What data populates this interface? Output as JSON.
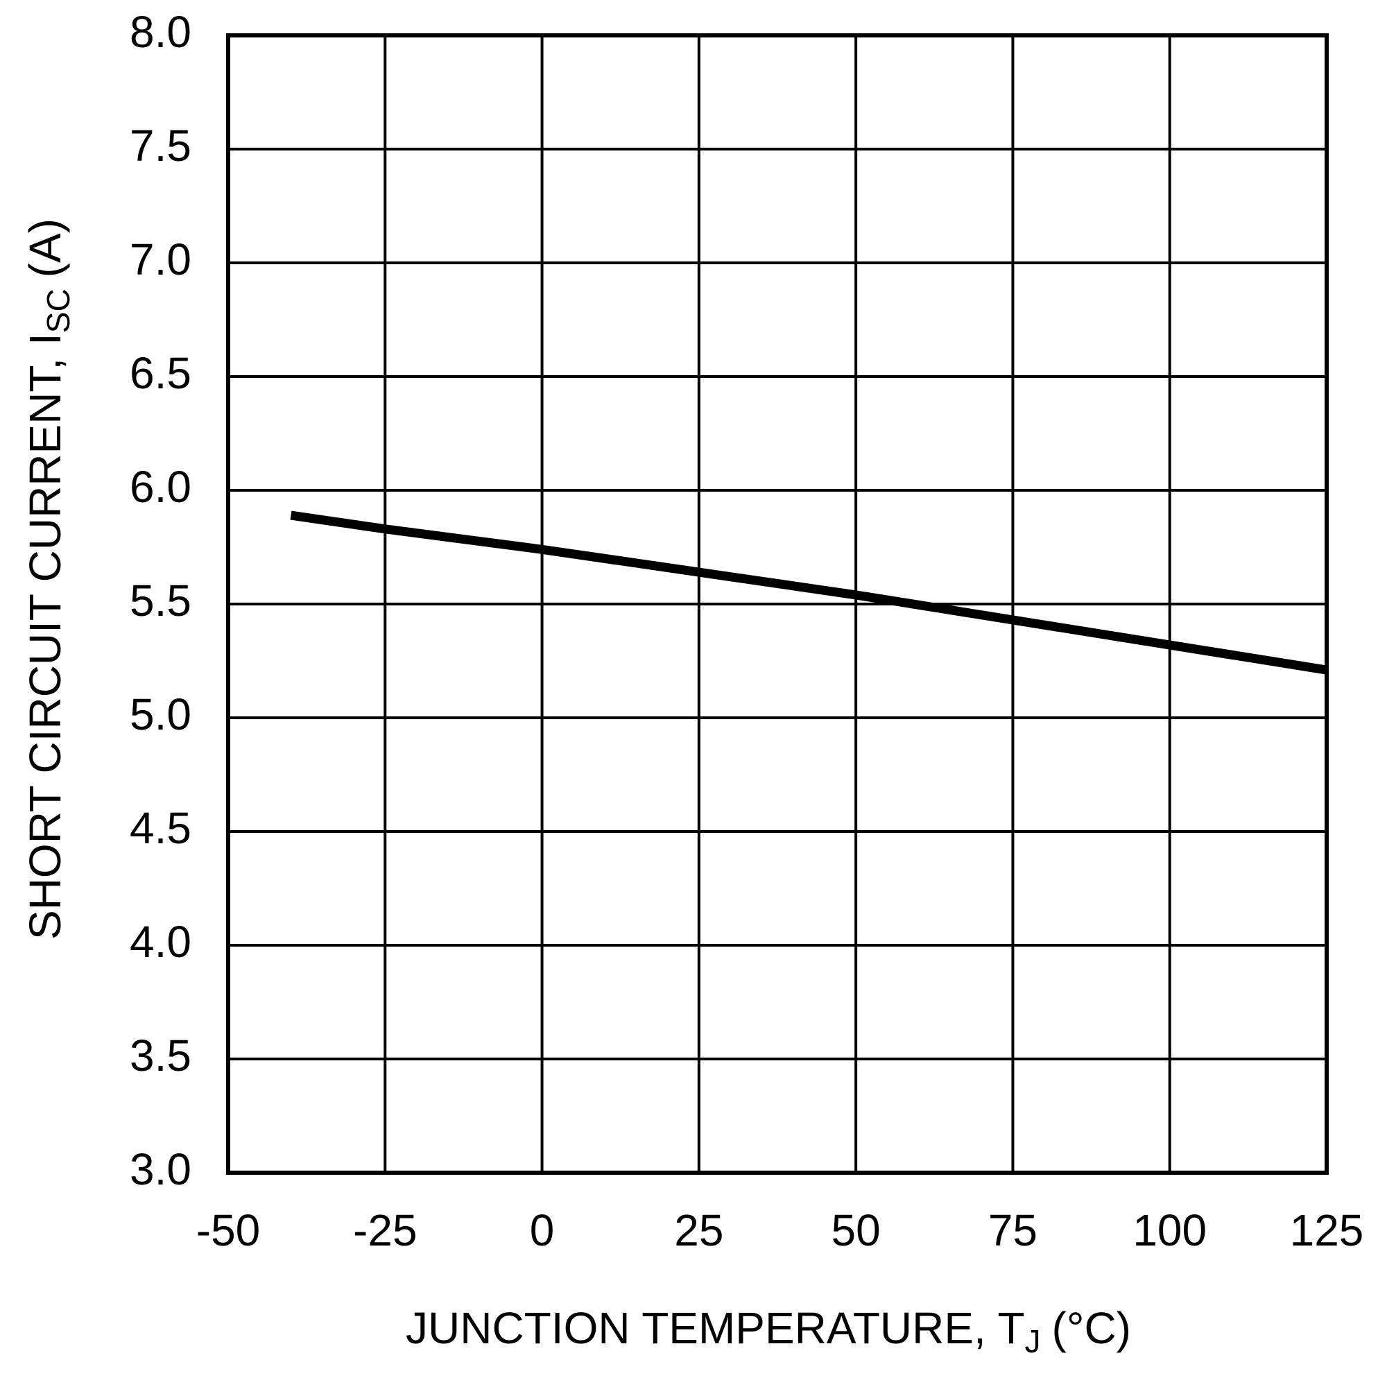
{
  "chart_data": {
    "type": "line",
    "ylabel_parts": [
      "SHORT CIRCUIT CURRENT, I",
      "SC",
      "(A)"
    ],
    "xlabel_parts": [
      "JUNCTION TEMPERATURE, T",
      "J",
      "(°C)"
    ],
    "x": [
      -40,
      -25,
      0,
      25,
      50,
      75,
      100,
      125
    ],
    "series": [
      {
        "color": "#000000",
        "values": [
          5.89,
          5.83,
          5.74,
          5.64,
          5.54,
          5.43,
          5.32,
          5.21
        ]
      }
    ],
    "xlim": [
      -50,
      125
    ],
    "xticks": [
      -50,
      -25,
      0,
      25,
      50,
      75,
      100,
      125
    ],
    "ylim": [
      3,
      8
    ],
    "yticks": [
      {
        "value": 3,
        "label": "3.0"
      },
      3.5,
      {
        "value": 4,
        "label": "4.0"
      },
      4.5,
      {
        "value": 5,
        "label": "5.0"
      },
      5.5,
      {
        "value": 6,
        "label": "6.0"
      },
      6.5,
      {
        "value": 7,
        "label": "7.0"
      },
      7.5,
      {
        "value": 8,
        "label": "8.0"
      }
    ],
    "grid": true
  }
}
